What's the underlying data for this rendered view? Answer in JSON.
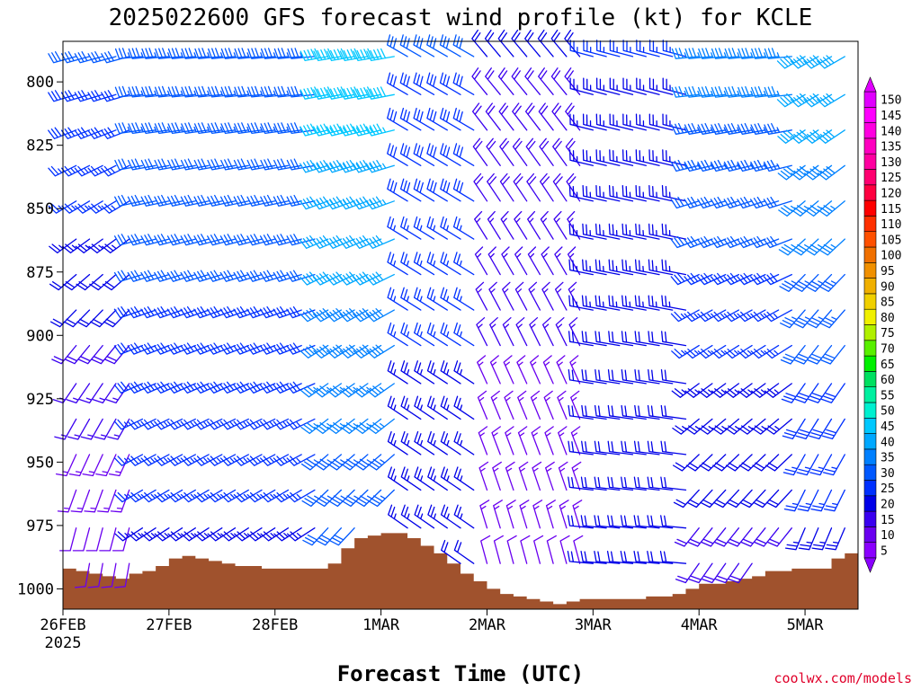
{
  "chart_data": {
    "type": "wind_barbs",
    "title": "2025022600 GFS forecast wind profile (kt) for KCLE",
    "xlabel": "Forecast Time (UTC)",
    "ylabel": "",
    "credit": "coolwx.com/models",
    "x_ticks": [
      "26FEB",
      "27FEB",
      "28FEB",
      "1MAR",
      "2MAR",
      "3MAR",
      "4MAR",
      "5MAR"
    ],
    "x_tick_hours": [
      0,
      24,
      48,
      72,
      96,
      120,
      144,
      168
    ],
    "x_year_label": "2025",
    "xlim_hours": [
      0,
      180
    ],
    "y_ticks": [
      800,
      825,
      850,
      875,
      900,
      925,
      950,
      975,
      1000
    ],
    "ylim_hpa": [
      784,
      1008
    ],
    "levels_hpa": [
      790,
      805,
      819,
      833,
      847,
      862,
      876,
      890,
      904,
      919,
      933,
      947,
      961,
      976,
      990
    ],
    "surface_pressure": {
      "hours": [
        0,
        3,
        6,
        9,
        12,
        15,
        18,
        21,
        24,
        27,
        30,
        33,
        36,
        39,
        42,
        45,
        48,
        51,
        54,
        57,
        60,
        63,
        66,
        69,
        72,
        75,
        78,
        81,
        84,
        87,
        90,
        93,
        96,
        99,
        102,
        105,
        108,
        111,
        114,
        117,
        120,
        123,
        126,
        129,
        132,
        135,
        138,
        141,
        144,
        147,
        150,
        153,
        156,
        159,
        162,
        165,
        168,
        171,
        174,
        177,
        180
      ],
      "values": [
        992,
        993,
        994,
        995,
        996,
        994,
        993,
        991,
        988,
        987,
        988,
        989,
        990,
        991,
        991,
        992,
        992,
        992,
        992,
        992,
        990,
        984,
        980,
        979,
        978,
        978,
        980,
        983,
        986,
        990,
        994,
        997,
        1000,
        1002,
        1003,
        1004,
        1005,
        1006,
        1005,
        1004,
        1004,
        1004,
        1004,
        1004,
        1003,
        1003,
        1002,
        1000,
        998,
        998,
        997,
        996,
        995,
        993,
        993,
        992,
        992,
        992,
        988,
        986,
        984
      ]
    },
    "wind_speed_colorbar": {
      "values": [
        5,
        10,
        15,
        20,
        25,
        30,
        35,
        40,
        45,
        50,
        55,
        60,
        65,
        70,
        75,
        80,
        85,
        90,
        95,
        100,
        105,
        110,
        115,
        120,
        125,
        130,
        135,
        140,
        145,
        150
      ],
      "colors": [
        "#8a00ff",
        "#6a00f0",
        "#3a00f0",
        "#0000e8",
        "#0030ff",
        "#0058ff",
        "#0080ff",
        "#00a8ff",
        "#00c8ff",
        "#00f0d0",
        "#00f0a0",
        "#00e060",
        "#00f000",
        "#58f000",
        "#b0f000",
        "#f0f000",
        "#f0d000",
        "#f0b000",
        "#f09000",
        "#f07000",
        "#ff5000",
        "#ff3000",
        "#ff0000",
        "#ff0040",
        "#ff0070",
        "#ff00a0",
        "#ff00c0",
        "#ff00e0",
        "#ff00ff",
        "#e000ff"
      ]
    }
  }
}
